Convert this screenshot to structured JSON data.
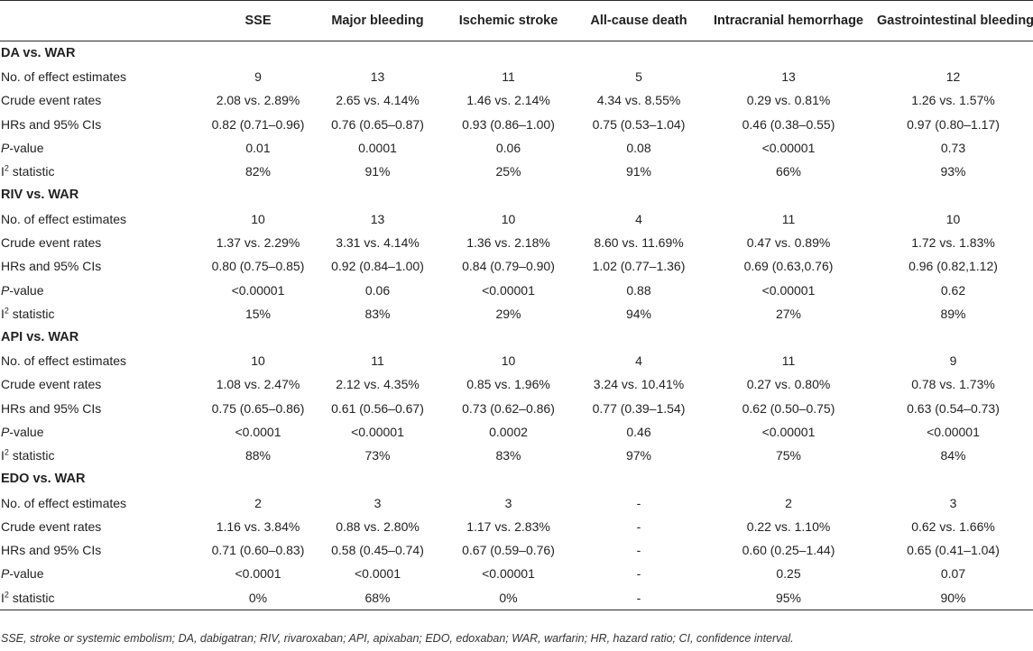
{
  "columns": [
    "",
    "SSE",
    "Major bleeding",
    "Ischemic stroke",
    "All-cause death",
    "Intracranial hemorrhage",
    "Gastrointestinal bleeding"
  ],
  "row_labels": {
    "n": "No. of effect estimates",
    "crude": "Crude event rates",
    "hr": "HRs and 95% CIs",
    "p_prefix": "P",
    "p_suffix": "-value",
    "i2_prefix": "I",
    "i2_sup": "2",
    "i2_suffix": " statistic"
  },
  "groups": [
    {
      "title": "DA vs. WAR",
      "n": [
        "9",
        "13",
        "11",
        "5",
        "13",
        "12"
      ],
      "crude": [
        "2.08 vs. 2.89%",
        "2.65 vs. 4.14%",
        "1.46 vs. 2.14%",
        "4.34 vs. 8.55%",
        "0.29 vs. 0.81%",
        "1.26 vs. 1.57%"
      ],
      "hr": [
        "0.82 (0.71–0.96)",
        "0.76 (0.65–0.87)",
        "0.93 (0.86–1.00)",
        "0.75 (0.53–1.04)",
        "0.46 (0.38–0.55)",
        "0.97 (0.80–1.17)"
      ],
      "p": [
        "0.01",
        "0.0001",
        "0.06",
        "0.08",
        "<0.00001",
        "0.73"
      ],
      "i2": [
        "82%",
        "91%",
        "25%",
        "91%",
        "66%",
        "93%"
      ]
    },
    {
      "title": "RIV vs. WAR",
      "n": [
        "10",
        "13",
        "10",
        "4",
        "11",
        "10"
      ],
      "crude": [
        "1.37 vs. 2.29%",
        "3.31 vs. 4.14%",
        "1.36 vs. 2.18%",
        "8.60 vs. 11.69%",
        "0.47 vs. 0.89%",
        "1.72 vs. 1.83%"
      ],
      "hr": [
        "0.80 (0.75–0.85)",
        "0.92 (0.84–1.00)",
        "0.84 (0.79–0.90)",
        "1.02 (0.77–1.36)",
        "0.69 (0.63,0.76)",
        "0.96 (0.82,1.12)"
      ],
      "p": [
        "<0.00001",
        "0.06",
        "<0.00001",
        "0.88",
        "<0.00001",
        "0.62"
      ],
      "i2": [
        "15%",
        "83%",
        "29%",
        "94%",
        "27%",
        "89%"
      ]
    },
    {
      "title": "API vs. WAR",
      "n": [
        "10",
        "11",
        "10",
        "4",
        "11",
        "9"
      ],
      "crude": [
        "1.08 vs. 2.47%",
        "2.12 vs. 4.35%",
        "0.85 vs. 1.96%",
        "3.24 vs. 10.41%",
        "0.27 vs. 0.80%",
        "0.78 vs. 1.73%"
      ],
      "hr": [
        "0.75 (0.65–0.86)",
        "0.61 (0.56–0.67)",
        "0.73 (0.62–0.86)",
        "0.77 (0.39–1.54)",
        "0.62 (0.50–0.75)",
        "0.63 (0.54–0.73)"
      ],
      "p": [
        "<0.0001",
        "<0.00001",
        "0.0002",
        "0.46",
        "<0.00001",
        "<0.00001"
      ],
      "i2": [
        "88%",
        "73%",
        "83%",
        "97%",
        "75%",
        "84%"
      ]
    },
    {
      "title": "EDO vs. WAR",
      "n": [
        "2",
        "3",
        "3",
        "-",
        "2",
        "3"
      ],
      "crude": [
        "1.16 vs. 3.84%",
        "0.88 vs. 2.80%",
        "1.17 vs. 2.83%",
        "-",
        "0.22 vs. 1.10%",
        "0.62 vs. 1.66%"
      ],
      "hr": [
        "0.71 (0.60–0.83)",
        "0.58 (0.45–0.74)",
        "0.67 (0.59–0.76)",
        "-",
        "0.60 (0.25–1.44)",
        "0.65 (0.41–1.04)"
      ],
      "p": [
        "<0.0001",
        "<0.0001",
        "<0.00001",
        "-",
        "0.25",
        "0.07"
      ],
      "i2": [
        "0%",
        "68%",
        "0%",
        "-",
        "95%",
        "90%"
      ]
    }
  ],
  "footnote": "SSE, stroke or systemic embolism; DA, dabigatran; RIV, rivaroxaban; API, apixaban; EDO, edoxaban; WAR, warfarin; HR, hazard ratio; CI, confidence interval."
}
